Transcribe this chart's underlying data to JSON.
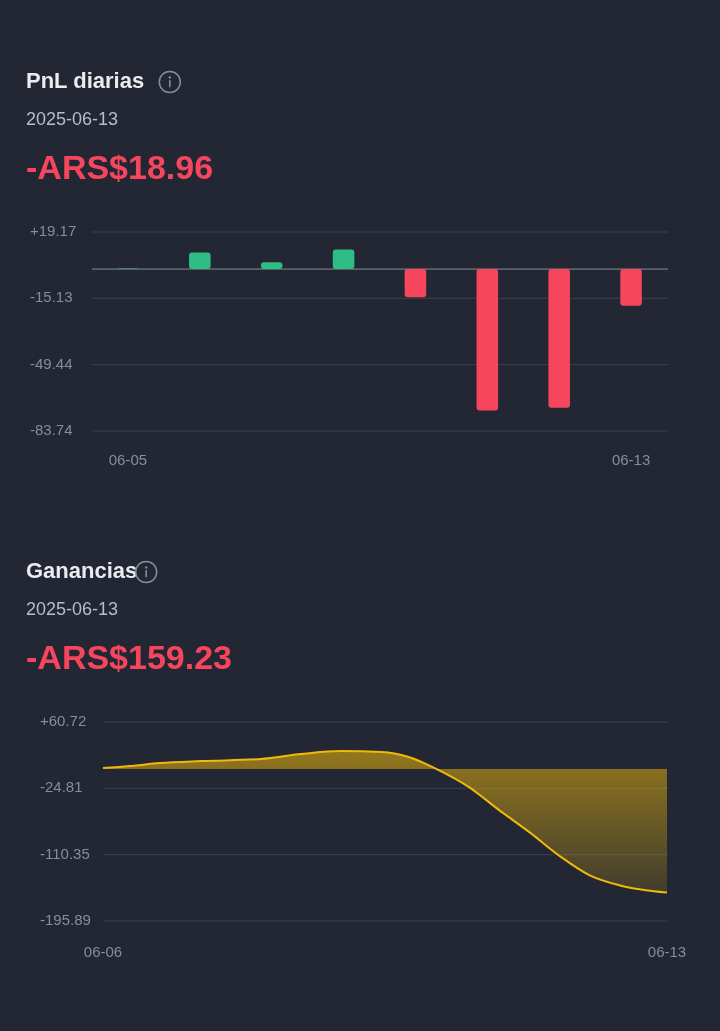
{
  "chart_data": [
    {
      "type": "bar",
      "title": "PnL diarias",
      "subtitle": "2025-06-13",
      "annotations": [
        "-ARS$18.96"
      ],
      "categories": [
        "06-05",
        null,
        null,
        null,
        null,
        null,
        null,
        "06-13"
      ],
      "values": [
        0.3,
        8.6,
        3.5,
        10.1,
        -14.6,
        -73.2,
        -71.7,
        -18.96
      ],
      "colors": [
        "#2ebd85",
        "#2ebd85",
        "#2ebd85",
        "#2ebd85",
        "#f6465d",
        "#f6465d",
        "#f6465d",
        "#f6465d"
      ],
      "ylim": [
        -83.74,
        19.17
      ],
      "yticks": [
        {
          "value": 19.17,
          "label": "+19.17"
        },
        -15.13,
        -49.44,
        -83.74
      ],
      "grid": "y"
    },
    {
      "type": "area",
      "title": "Ganancias",
      "subtitle": "2025-06-13",
      "annotations": [
        "-ARS$159.23"
      ],
      "x": [
        "2025-06-06T00:00",
        "2025-06-06T08:00",
        "2025-06-06T17:00",
        "2025-06-07T05:00",
        "2025-06-07T23:00",
        "2025-06-08T11:00",
        "2025-06-08T23:00",
        "2025-06-09T11:00",
        "2025-06-09T19:00",
        "2025-06-10T04:00",
        "2025-06-10T13:00",
        "2025-06-10T22:00",
        "2025-06-11T07:00",
        "2025-06-11T16:00",
        "2025-06-12T01:00",
        "2025-06-12T10:00",
        "2025-06-13T00:00"
      ],
      "series": [
        {
          "color": "#f0b90b",
          "values": [
            1.3,
            3.9,
            7.7,
            10.3,
            12.9,
            19.4,
            23.2,
            21.9,
            15.5,
            -1.3,
            -23.2,
            -52.9,
            -81.3,
            -112,
            -137,
            -150,
            -159.23
          ]
        }
      ],
      "xlim": [
        "2025-06-06",
        "2025-06-13"
      ],
      "xticks": [
        {
          "value": "2025-06-06",
          "label": "06-06"
        },
        {
          "value": "2025-06-13",
          "label": "06-13"
        }
      ],
      "ylim": [
        -195.89,
        60.72
      ],
      "yticks": [
        {
          "value": 60.72,
          "label": "+60.72"
        },
        -24.81,
        -110.35,
        -195.89
      ],
      "grid": "y"
    }
  ]
}
